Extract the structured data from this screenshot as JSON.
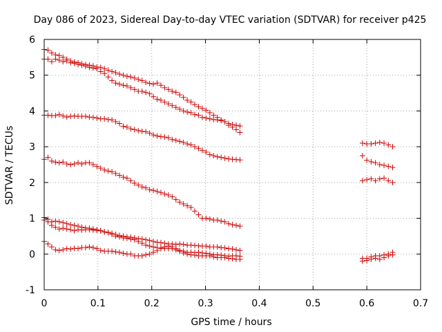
{
  "chart_data": {
    "type": "scatter",
    "title": "Day 086 of 2023, Sidereal Day-to-day VTEC variation (SDTVAR) for receiver p425",
    "xlabel": "GPS time / hours",
    "ylabel": "SDTVAR / TECUs",
    "xlim": [
      0,
      0.7
    ],
    "ylim": [
      -1,
      6
    ],
    "xticks": [
      0,
      0.1,
      0.2,
      0.3,
      0.4,
      0.5,
      0.6,
      0.7
    ],
    "yticks": [
      -1,
      0,
      1,
      2,
      3,
      4,
      5,
      6
    ],
    "xtick_labels": [
      "0",
      "0.1",
      "0.2",
      "0.3",
      "0.4",
      "0.5",
      "0.6",
      "0.7"
    ],
    "ytick_labels": [
      "-1",
      "0",
      "1",
      "2",
      "3",
      "4",
      "5",
      "6"
    ],
    "grid": true,
    "marker": "+",
    "marker_color": "#cc0000",
    "series": [
      {
        "name": "s1",
        "segments": [
          {
            "x": [
              0.0,
              0.007,
              0.014,
              0.021,
              0.028,
              0.035,
              0.042,
              0.049,
              0.056,
              0.063,
              0.07,
              0.077,
              0.084,
              0.091,
              0.098,
              0.105,
              0.112,
              0.119,
              0.126,
              0.133,
              0.14,
              0.147,
              0.154,
              0.161,
              0.168,
              0.175,
              0.182,
              0.189,
              0.196,
              0.203,
              0.21,
              0.217,
              0.224,
              0.231,
              0.238,
              0.245,
              0.252,
              0.259,
              0.266,
              0.273,
              0.28,
              0.287,
              0.294,
              0.301,
              0.308,
              0.315,
              0.322,
              0.329,
              0.336,
              0.343,
              0.35,
              0.357,
              0.364
            ],
            "y": [
              5.72,
              5.7,
              5.62,
              5.57,
              5.55,
              5.5,
              5.45,
              5.4,
              5.37,
              5.35,
              5.32,
              5.3,
              5.28,
              5.26,
              5.23,
              5.22,
              5.18,
              5.14,
              5.1,
              5.07,
              5.03,
              5.0,
              4.97,
              4.95,
              4.92,
              4.88,
              4.85,
              4.8,
              4.77,
              4.75,
              4.78,
              4.72,
              4.65,
              4.6,
              4.55,
              4.52,
              4.45,
              4.38,
              4.3,
              4.25,
              4.18,
              4.12,
              4.07,
              4.02,
              3.95,
              3.88,
              3.82,
              3.75,
              3.7,
              3.65,
              3.62,
              3.6,
              3.58
            ]
          },
          {
            "x": [],
            "y": []
          }
        ]
      },
      {
        "name": "s2",
        "segments": [
          {
            "x": [
              0.0,
              0.007,
              0.014,
              0.021,
              0.028,
              0.035,
              0.042,
              0.049,
              0.056,
              0.063,
              0.07,
              0.077,
              0.084,
              0.091,
              0.098,
              0.105,
              0.112,
              0.119,
              0.126,
              0.133,
              0.14,
              0.147,
              0.154,
              0.161,
              0.168,
              0.175,
              0.182,
              0.189,
              0.196,
              0.203,
              0.21,
              0.217,
              0.224,
              0.231,
              0.238,
              0.245,
              0.252,
              0.259,
              0.266,
              0.273,
              0.28,
              0.287,
              0.294,
              0.301,
              0.308,
              0.315,
              0.322,
              0.329,
              0.336,
              0.343,
              0.35,
              0.357,
              0.364
            ],
            "y": [
              5.45,
              5.45,
              5.38,
              5.45,
              5.42,
              5.38,
              5.4,
              5.35,
              5.33,
              5.3,
              5.28,
              5.25,
              5.22,
              5.2,
              5.18,
              5.1,
              5.05,
              4.95,
              4.85,
              4.78,
              4.75,
              4.72,
              4.7,
              4.65,
              4.6,
              4.55,
              4.55,
              4.52,
              4.48,
              4.4,
              4.33,
              4.3,
              4.25,
              4.2,
              4.15,
              4.1,
              4.05,
              4.0,
              3.97,
              3.95,
              3.9,
              3.88,
              3.82,
              3.8,
              3.78,
              3.76,
              3.75,
              3.73,
              3.7,
              3.6,
              3.55,
              3.48,
              3.4
            ]
          },
          {
            "x": [],
            "y": []
          }
        ]
      },
      {
        "name": "s3",
        "segments": [
          {
            "x": [
              0.0,
              0.007,
              0.014,
              0.021,
              0.028,
              0.035,
              0.042,
              0.049,
              0.056,
              0.063,
              0.07,
              0.077,
              0.084,
              0.091,
              0.098,
              0.105,
              0.112,
              0.119,
              0.126,
              0.133,
              0.14,
              0.147,
              0.154,
              0.161,
              0.168,
              0.175,
              0.182,
              0.189,
              0.196,
              0.203,
              0.21,
              0.217,
              0.224,
              0.231,
              0.238,
              0.245,
              0.252,
              0.259,
              0.266,
              0.273,
              0.28,
              0.287,
              0.294,
              0.301,
              0.308,
              0.315,
              0.322,
              0.329,
              0.336,
              0.343,
              0.35,
              0.357,
              0.364
            ],
            "y": [
              3.88,
              3.88,
              3.87,
              3.87,
              3.9,
              3.86,
              3.83,
              3.85,
              3.86,
              3.85,
              3.85,
              3.85,
              3.83,
              3.82,
              3.8,
              3.78,
              3.78,
              3.76,
              3.75,
              3.7,
              3.65,
              3.57,
              3.55,
              3.5,
              3.48,
              3.45,
              3.43,
              3.42,
              3.38,
              3.33,
              3.3,
              3.28,
              3.27,
              3.25,
              3.2,
              3.18,
              3.15,
              3.12,
              3.08,
              3.05,
              3.0,
              2.95,
              2.9,
              2.85,
              2.78,
              2.75,
              2.72,
              2.7,
              2.68,
              2.66,
              2.65,
              2.64,
              2.63
            ]
          },
          {
            "x": [
              0.592,
              0.6,
              0.608,
              0.616,
              0.624,
              0.632,
              0.64,
              0.648
            ],
            "y": [
              3.1,
              3.08,
              3.08,
              3.1,
              3.12,
              3.1,
              3.05,
              3.0
            ]
          }
        ]
      },
      {
        "name": "s4",
        "segments": [
          {
            "x": [
              0.0,
              0.007,
              0.014,
              0.021,
              0.028,
              0.035,
              0.042,
              0.049,
              0.056,
              0.063,
              0.07,
              0.077,
              0.084,
              0.091,
              0.098,
              0.105,
              0.112,
              0.119,
              0.126,
              0.133,
              0.14,
              0.147,
              0.154,
              0.161,
              0.168,
              0.175,
              0.182,
              0.189,
              0.196,
              0.203,
              0.21,
              0.217,
              0.224,
              0.231,
              0.238,
              0.245,
              0.252,
              0.259,
              0.266,
              0.273,
              0.28,
              0.287,
              0.294,
              0.301,
              0.308,
              0.315,
              0.322,
              0.329,
              0.336,
              0.343,
              0.35,
              0.357,
              0.364
            ],
            "y": [
              2.65,
              2.7,
              2.6,
              2.57,
              2.55,
              2.57,
              2.52,
              2.5,
              2.52,
              2.55,
              2.52,
              2.55,
              2.55,
              2.5,
              2.45,
              2.4,
              2.35,
              2.32,
              2.3,
              2.25,
              2.2,
              2.15,
              2.12,
              2.05,
              1.98,
              1.93,
              1.88,
              1.85,
              1.8,
              1.78,
              1.75,
              1.72,
              1.68,
              1.65,
              1.6,
              1.52,
              1.45,
              1.4,
              1.35,
              1.3,
              1.2,
              1.1,
              1.0,
              1.0,
              0.98,
              0.95,
              0.95,
              0.92,
              0.9,
              0.85,
              0.82,
              0.8,
              0.78
            ]
          },
          {
            "x": [
              0.592,
              0.6,
              0.608,
              0.616,
              0.624,
              0.632,
              0.64,
              0.648
            ],
            "y": [
              2.75,
              2.62,
              2.58,
              2.55,
              2.5,
              2.48,
              2.45,
              2.42
            ]
          }
        ]
      },
      {
        "name": "s5",
        "segments": [
          {
            "x": [
              0.0,
              0.007,
              0.014,
              0.021,
              0.028,
              0.035,
              0.042,
              0.049,
              0.056,
              0.063,
              0.07,
              0.077,
              0.084,
              0.091,
              0.098,
              0.105,
              0.112,
              0.119,
              0.126,
              0.133,
              0.14,
              0.147,
              0.154,
              0.161,
              0.168,
              0.175,
              0.182,
              0.189,
              0.196,
              0.203,
              0.21,
              0.217,
              0.224,
              0.231,
              0.238,
              0.245,
              0.252,
              0.259,
              0.266,
              0.273,
              0.28,
              0.287,
              0.294,
              0.301,
              0.308,
              0.315,
              0.322,
              0.329,
              0.336,
              0.343,
              0.35,
              0.357,
              0.364
            ],
            "y": [
              1.02,
              0.97,
              0.9,
              0.92,
              0.9,
              0.88,
              0.85,
              0.82,
              0.8,
              0.78,
              0.75,
              0.73,
              0.72,
              0.7,
              0.68,
              0.65,
              0.62,
              0.6,
              0.58,
              0.55,
              0.52,
              0.5,
              0.48,
              0.47,
              0.45,
              0.43,
              0.42,
              0.4,
              0.38,
              0.35,
              0.33,
              0.32,
              0.3,
              0.28,
              0.28,
              0.27,
              0.28,
              0.27,
              0.25,
              0.25,
              0.24,
              0.23,
              0.22,
              0.22,
              0.2,
              0.2,
              0.2,
              0.18,
              0.17,
              0.15,
              0.14,
              0.12,
              0.1
            ]
          },
          {
            "x": [
              0.592,
              0.6,
              0.608,
              0.616,
              0.624,
              0.632,
              0.64,
              0.648
            ],
            "y": [
              2.05,
              2.08,
              2.1,
              2.05,
              2.1,
              2.12,
              2.05,
              2.0
            ]
          }
        ]
      },
      {
        "name": "s6",
        "segments": [
          {
            "x": [
              0.0,
              0.007,
              0.014,
              0.021,
              0.028,
              0.035,
              0.042,
              0.049,
              0.056,
              0.063,
              0.07,
              0.077,
              0.084,
              0.091,
              0.098,
              0.105,
              0.112,
              0.119,
              0.126,
              0.133,
              0.14,
              0.147,
              0.154,
              0.161,
              0.168,
              0.175,
              0.182,
              0.189,
              0.196,
              0.203,
              0.21,
              0.217,
              0.224,
              0.231,
              0.238,
              0.245,
              0.252,
              0.259,
              0.266,
              0.273,
              0.28,
              0.287,
              0.294,
              0.301,
              0.308,
              0.315,
              0.322,
              0.329,
              0.336,
              0.343,
              0.35,
              0.357,
              0.364
            ],
            "y": [
              0.95,
              0.9,
              0.8,
              0.75,
              0.7,
              0.72,
              0.7,
              0.68,
              0.65,
              0.68,
              0.67,
              0.68,
              0.68,
              0.67,
              0.66,
              0.65,
              0.62,
              0.6,
              0.55,
              0.5,
              0.48,
              0.45,
              0.44,
              0.42,
              0.4,
              0.35,
              0.3,
              0.25,
              0.22,
              0.2,
              0.18,
              0.18,
              0.15,
              0.15,
              0.15,
              0.12,
              0.1,
              0.08,
              0.05,
              0.05,
              0.04,
              0.05,
              0.03,
              0.02,
              0.0,
              -0.02,
              -0.02,
              -0.03,
              -0.05,
              -0.06,
              -0.05,
              -0.05,
              -0.06
            ]
          },
          {
            "x": [
              0.592,
              0.6,
              0.608,
              0.616,
              0.624,
              0.632,
              0.64,
              0.648
            ],
            "y": [
              -0.12,
              -0.12,
              -0.08,
              -0.05,
              -0.05,
              -0.02,
              0.0,
              0.05
            ]
          }
        ]
      },
      {
        "name": "s7",
        "segments": [
          {
            "x": [
              0.0,
              0.007,
              0.014,
              0.021,
              0.028,
              0.035,
              0.042,
              0.049,
              0.056,
              0.063,
              0.07,
              0.077,
              0.084,
              0.091,
              0.098,
              0.105,
              0.112,
              0.119,
              0.126,
              0.133,
              0.14,
              0.147,
              0.154,
              0.161,
              0.168,
              0.175,
              0.182,
              0.189,
              0.196,
              0.203,
              0.21,
              0.217,
              0.224,
              0.231,
              0.238,
              0.245,
              0.252,
              0.259,
              0.266,
              0.273,
              0.28,
              0.287,
              0.294,
              0.301,
              0.308,
              0.315,
              0.322,
              0.329,
              0.336,
              0.343,
              0.35,
              0.357,
              0.364
            ],
            "y": [
              0.35,
              0.28,
              0.2,
              0.12,
              0.1,
              0.12,
              0.15,
              0.14,
              0.16,
              0.15,
              0.18,
              0.18,
              0.2,
              0.18,
              0.15,
              0.1,
              0.08,
              0.08,
              0.08,
              0.06,
              0.05,
              0.02,
              0.0,
              0.0,
              -0.05,
              -0.05,
              -0.05,
              -0.02,
              0.0,
              0.05,
              0.1,
              0.15,
              0.2,
              0.22,
              0.2,
              0.15,
              0.08,
              0.03,
              0.0,
              -0.02,
              -0.03,
              -0.05,
              -0.05,
              -0.05,
              -0.05,
              -0.08,
              -0.1,
              -0.1,
              -0.1,
              -0.12,
              -0.13,
              -0.15,
              -0.15
            ]
          },
          {
            "x": [
              0.592,
              0.6,
              0.608,
              0.616,
              0.624,
              0.632,
              0.64,
              0.648
            ],
            "y": [
              -0.2,
              -0.18,
              -0.15,
              -0.12,
              -0.15,
              -0.1,
              -0.05,
              -0.02
            ]
          }
        ]
      }
    ]
  }
}
